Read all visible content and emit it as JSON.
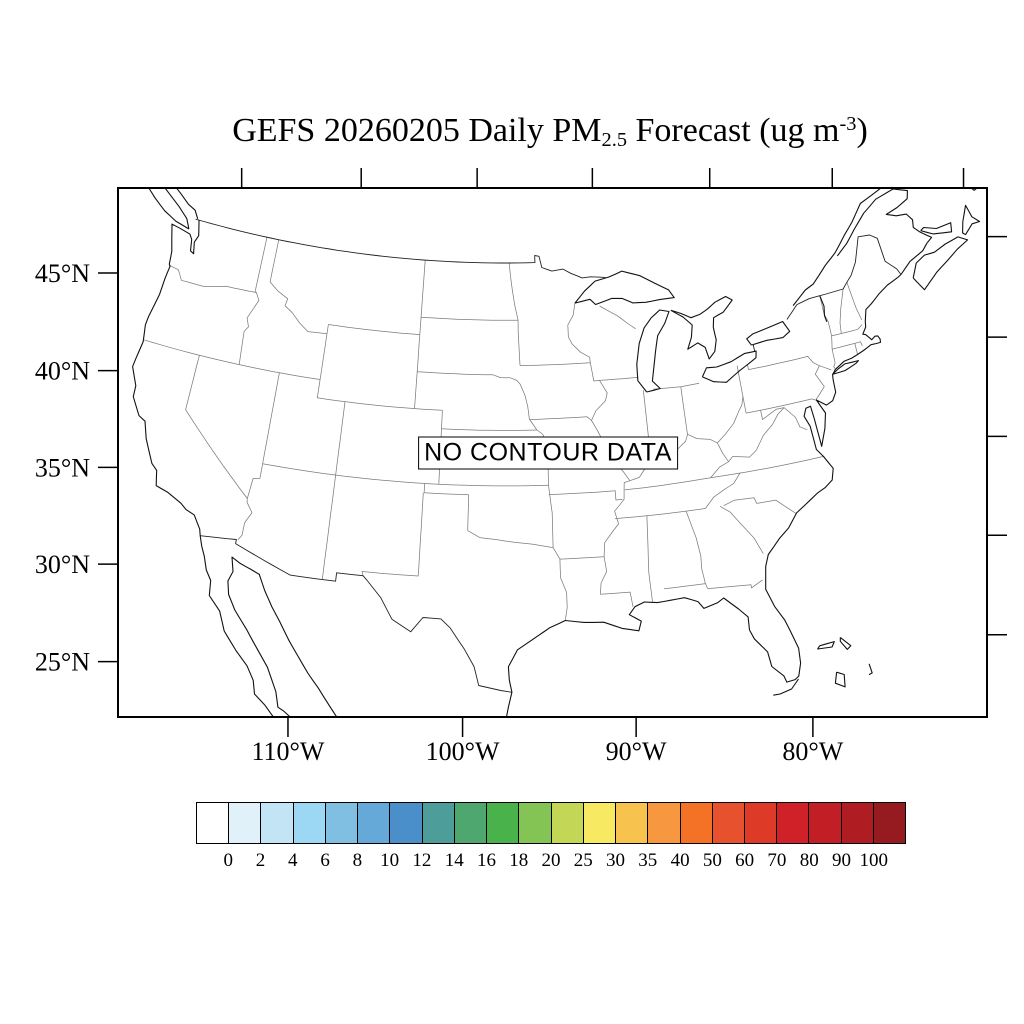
{
  "title": {
    "prefix": "GEFS 20260205 Daily PM",
    "subscript": "2.5",
    "middle": " Forecast (ug m",
    "superscript": "-3",
    "suffix": ")"
  },
  "map": {
    "no_data_label": "NO CONTOUR DATA",
    "lat_tick_labels": [
      "45°N",
      "40°N",
      "35°N",
      "30°N",
      "25°N"
    ],
    "lat_values": [
      45,
      40,
      35,
      30,
      25
    ],
    "lon_tick_labels": [
      "110°W",
      "100°W",
      "90°W",
      "80°W"
    ],
    "lon_values": [
      -110,
      -100,
      -90,
      -80
    ],
    "top_tick_lon_values": [
      -120,
      -110,
      -100,
      -90,
      -80,
      -70,
      -60
    ]
  },
  "colorbar": {
    "labels": [
      "0",
      "2",
      "4",
      "6",
      "8",
      "10",
      "12",
      "14",
      "16",
      "18",
      "20",
      "25",
      "30",
      "35",
      "40",
      "50",
      "60",
      "70",
      "80",
      "90",
      "100"
    ],
    "colors": [
      "#FFFFFF",
      "#E0F1F9",
      "#C2E4F4",
      "#9CD7F3",
      "#81BFE2",
      "#65A9D9",
      "#4A8FCA",
      "#4D9D9B",
      "#4FA770",
      "#49B24B",
      "#84C455",
      "#C3D655",
      "#F8E962",
      "#F8C24F",
      "#F79840",
      "#F37226",
      "#E8512D",
      "#DD3A28",
      "#D02128",
      "#C21E26",
      "#AF1D23",
      "#951B20"
    ]
  }
}
